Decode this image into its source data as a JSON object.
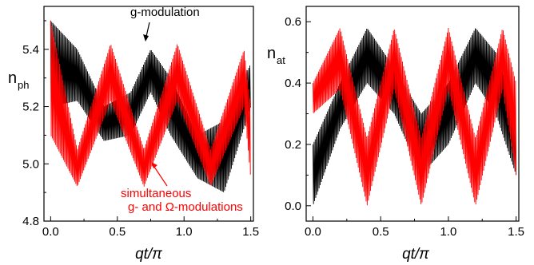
{
  "chart_data": [
    {
      "type": "line",
      "panel": "left",
      "ylabel_main": "n",
      "ylabel_sub": "ph",
      "xlabel": "qt/π",
      "xlim": [
        -0.05,
        1.52
      ],
      "ylim": [
        4.8,
        5.55
      ],
      "x_ticks": [
        "0.0",
        "0.5",
        "1.0",
        "1.5"
      ],
      "y_ticks": [
        "4.8",
        "5.0",
        "5.2",
        "5.4"
      ],
      "y_tick_values": [
        4.8,
        5.0,
        5.2,
        5.4
      ],
      "series": [
        {
          "color": "#000000",
          "label": "g-modulation",
          "envelope": {
            "x": [
              0.0,
              0.2,
              0.4,
              0.6,
              0.75,
              0.9,
              1.1,
              1.3,
              1.5
            ],
            "lower": [
              5.2,
              5.22,
              5.08,
              5.1,
              5.25,
              5.1,
              4.95,
              4.9,
              5.2
            ],
            "upper": [
              5.5,
              5.4,
              5.2,
              5.25,
              5.4,
              5.3,
              5.1,
              5.15,
              5.35
            ]
          }
        },
        {
          "color": "#ff0000",
          "label": "simultaneous g- and Ω-modulations",
          "envelope": {
            "x": [
              0.0,
              0.2,
              0.45,
              0.7,
              0.95,
              1.2,
              1.45,
              1.5
            ],
            "lower": [
              5.1,
              4.92,
              5.22,
              4.92,
              5.22,
              4.92,
              5.2,
              4.95
            ],
            "upper": [
              5.5,
              5.05,
              5.42,
              5.05,
              5.42,
              5.05,
              5.4,
              5.2
            ]
          }
        }
      ],
      "annotations": [
        "g-modulation",
        "simultaneous",
        "g- and Ω-modulations"
      ]
    },
    {
      "type": "line",
      "panel": "right",
      "ylabel_main": "n",
      "ylabel_sub": "at",
      "xlabel": "qt/π",
      "xlim": [
        -0.05,
        1.52
      ],
      "ylim": [
        -0.05,
        0.65
      ],
      "x_ticks": [
        "0.0",
        "0.5",
        "1.0",
        "1.5"
      ],
      "y_ticks": [
        "0.0",
        "0.2",
        "0.4",
        "0.6"
      ],
      "y_tick_values": [
        0.0,
        0.2,
        0.4,
        0.6
      ],
      "series": [
        {
          "color": "#000000",
          "envelope": {
            "x": [
              0.0,
              0.2,
              0.4,
              0.6,
              0.8,
              1.0,
              1.2,
              1.35,
              1.5
            ],
            "lower": [
              0.0,
              0.25,
              0.4,
              0.3,
              0.1,
              0.2,
              0.4,
              0.3,
              0.1
            ],
            "upper": [
              0.2,
              0.4,
              0.58,
              0.45,
              0.3,
              0.4,
              0.58,
              0.5,
              0.3
            ]
          }
        },
        {
          "color": "#ff0000",
          "envelope": {
            "x": [
              0.0,
              0.2,
              0.4,
              0.6,
              0.8,
              1.0,
              1.2,
              1.4,
              1.5
            ],
            "lower": [
              0.3,
              0.38,
              0.0,
              0.38,
              0.0,
              0.38,
              0.0,
              0.38,
              0.1
            ],
            "upper": [
              0.4,
              0.58,
              0.22,
              0.58,
              0.22,
              0.58,
              0.22,
              0.58,
              0.4
            ]
          }
        }
      ]
    }
  ]
}
